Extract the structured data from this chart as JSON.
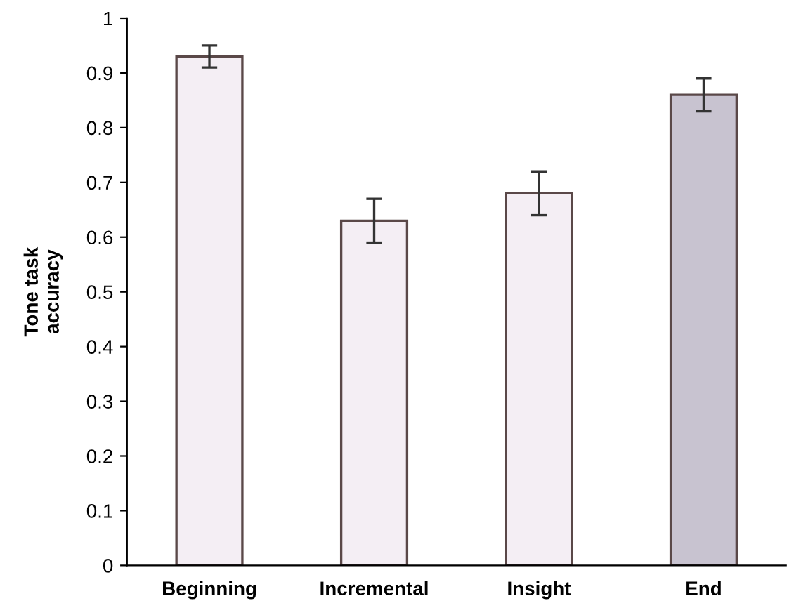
{
  "chart_data": {
    "type": "bar",
    "ylabel": "Tone task\naccuracy",
    "categories": [
      "Beginning",
      "Incremental",
      "Insight",
      "End"
    ],
    "values": [
      0.93,
      0.63,
      0.68,
      0.86
    ],
    "errors": [
      0.02,
      0.04,
      0.04,
      0.03
    ],
    "colors": [
      "#f4eef4",
      "#f4eef4",
      "#f4eef4",
      "#c8c3d0"
    ],
    "ylim": [
      0,
      1
    ],
    "yticks": [
      0,
      {
        "value": 0.1,
        "label": "0.1"
      },
      {
        "value": 0.2,
        "label": "0.2"
      },
      {
        "value": 0.3,
        "label": "0.3"
      },
      {
        "value": 0.4,
        "label": "0.4"
      },
      {
        "value": 0.5,
        "label": "0.5"
      },
      {
        "value": 0.6,
        "label": "0.6"
      },
      {
        "value": 0.7,
        "label": "0.7"
      },
      {
        "value": 0.8,
        "label": "0.8"
      },
      {
        "value": 0.9,
        "label": "0.9"
      },
      1
    ],
    "grid": false
  }
}
